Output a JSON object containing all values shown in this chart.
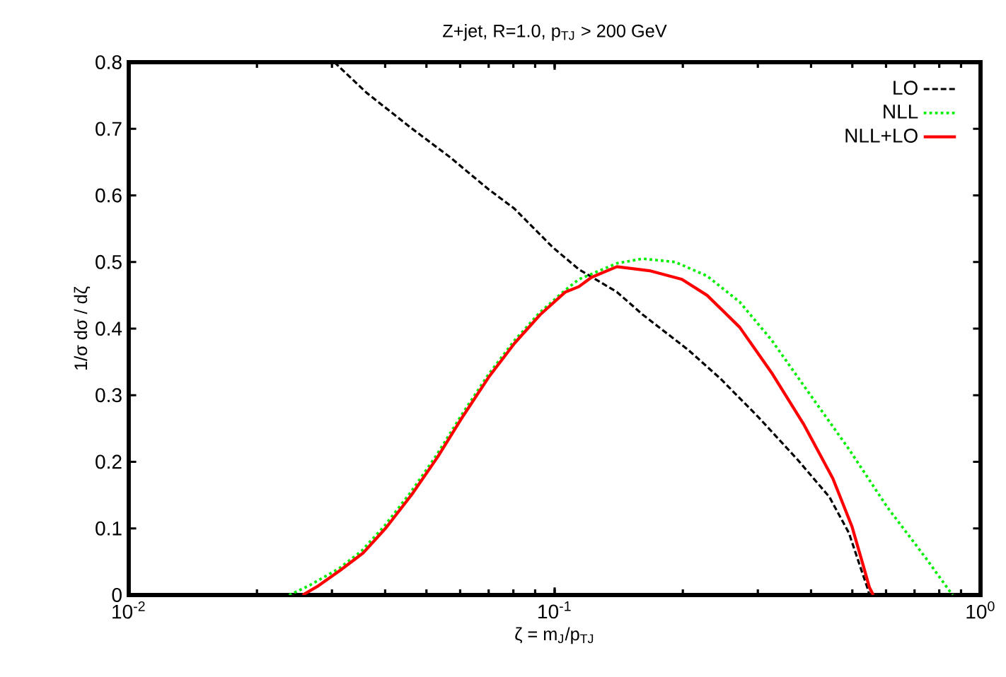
{
  "chart_data": {
    "type": "line",
    "title": "Z+jet, R=1.0, p$_{TJ}$ > 200 GeV",
    "xlabel": "ζ = m$_{J}$/p$_{TJ}$",
    "ylabel": "1/σ dσ / dζ",
    "log": "x",
    "xlim": [
      0.01,
      1
    ],
    "ylim": [
      0,
      0.8
    ],
    "xticks": [
      {
        "value": 0.01,
        "label": "10$^{-2}$"
      },
      {
        "value": 0.1,
        "label": "10$^{-1}$"
      },
      {
        "value": 1,
        "label": "10$^{0}$"
      }
    ],
    "yticks": [
      0,
      0.1,
      0.2,
      0.3,
      0.4,
      0.5,
      0.6,
      0.7,
      0.8
    ],
    "legend": "top right",
    "grid": false,
    "series": [
      {
        "name": "LO",
        "color": "#000000",
        "line_style": "dashed",
        "x": [
          0.0304,
          0.0362,
          0.0461,
          0.0569,
          0.07,
          0.0805,
          0.099,
          0.114,
          0.14,
          0.161,
          0.206,
          0.245,
          0.301,
          0.371,
          0.442,
          0.491,
          0.526,
          0.545,
          0.548
        ],
        "values": [
          0.8,
          0.754,
          0.701,
          0.657,
          0.609,
          0.58,
          0.522,
          0.489,
          0.455,
          0.421,
          0.368,
          0.325,
          0.267,
          0.204,
          0.147,
          0.093,
          0.036,
          0.007,
          0
        ]
      },
      {
        "name": "NLL",
        "color": "#00ee00",
        "line_style": "dotted",
        "x": [
          0.0238,
          0.0265,
          0.0312,
          0.0352,
          0.0399,
          0.0459,
          0.0528,
          0.0607,
          0.0697,
          0.0802,
          0.0922,
          0.106,
          0.114,
          0.14,
          0.161,
          0.192,
          0.228,
          0.272,
          0.323,
          0.398,
          0.491,
          0.604,
          0.745,
          0.855,
          0.86
        ],
        "values": [
          0,
          0.014,
          0.04,
          0.066,
          0.104,
          0.154,
          0.21,
          0.272,
          0.33,
          0.381,
          0.424,
          0.458,
          0.474,
          0.498,
          0.505,
          0.5,
          0.479,
          0.44,
          0.383,
          0.301,
          0.219,
          0.132,
          0.055,
          0.002,
          0
        ]
      },
      {
        "name": "NLL+LO",
        "color": "#ff0000",
        "line_style": "solid",
        "x": [
          0.0256,
          0.0279,
          0.0315,
          0.0355,
          0.0402,
          0.0462,
          0.0531,
          0.061,
          0.07,
          0.0805,
          0.0925,
          0.106,
          0.114,
          0.122,
          0.14,
          0.167,
          0.199,
          0.228,
          0.272,
          0.323,
          0.384,
          0.45,
          0.499,
          0.535,
          0.548,
          0.56
        ],
        "values": [
          0,
          0.014,
          0.038,
          0.063,
          0.101,
          0.151,
          0.207,
          0.269,
          0.327,
          0.378,
          0.421,
          0.455,
          0.463,
          0.477,
          0.493,
          0.487,
          0.474,
          0.45,
          0.402,
          0.334,
          0.257,
          0.175,
          0.103,
          0.036,
          0.012,
          0
        ]
      }
    ]
  }
}
